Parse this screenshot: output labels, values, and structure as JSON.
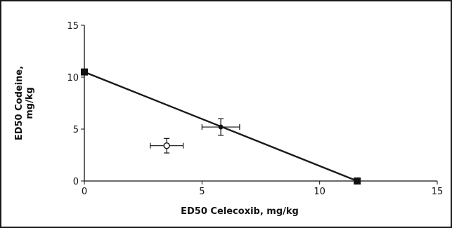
{
  "chart_data": {
    "type": "scatter",
    "title": "",
    "xlabel": "ED50 Celecoxib, mg/kg",
    "ylabel_lines": [
      "ED50 Codeine,",
      "mg/kg"
    ],
    "xlim": [
      0,
      15
    ],
    "ylim": [
      0,
      15
    ],
    "xticks": [
      0,
      5,
      10,
      15
    ],
    "yticks": [
      0,
      5,
      10,
      15
    ],
    "xtick_labels": [
      "0",
      "5",
      "10",
      "15"
    ],
    "ytick_labels": [
      "0",
      "5",
      "10",
      "15"
    ],
    "grid": false,
    "isobole": {
      "style": "line",
      "color": "#1a1a1a",
      "points": [
        {
          "x": 0,
          "y": 10.5
        },
        {
          "x": 11.6,
          "y": 0
        }
      ]
    },
    "points": [
      {
        "x": 0,
        "y": 10.5,
        "marker": "filled-square",
        "color": "#111111"
      },
      {
        "x": 11.6,
        "y": 0,
        "marker": "filled-square",
        "color": "#111111"
      },
      {
        "x": 5.8,
        "y": 5.2,
        "xerr": 0.8,
        "yerr": 0.8,
        "marker": "filled-circle",
        "color": "#111111"
      },
      {
        "x": 3.5,
        "y": 3.4,
        "xerr": 0.7,
        "yerr": 0.7,
        "marker": "open-circle",
        "color": "#111111"
      }
    ]
  }
}
